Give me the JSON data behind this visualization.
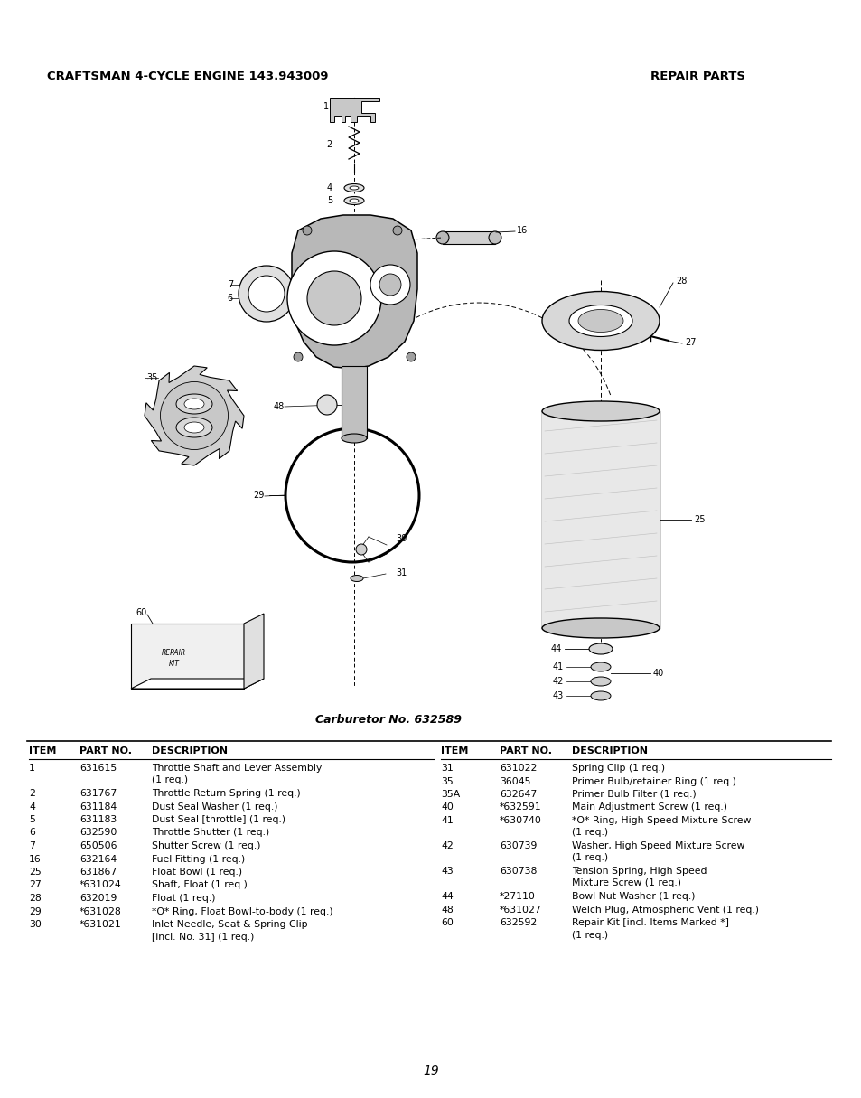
{
  "title_left": "CRAFTSMAN 4-CYCLE ENGINE 143.943009",
  "title_right": "REPAIR PARTS",
  "carburetor_label": "Carburetor No. 632589",
  "page_number": "19",
  "background_color": "#ffffff",
  "table_rows_left": [
    [
      "1",
      "631615",
      "Throttle Shaft and Lever Assembly",
      "(1 req.)"
    ],
    [
      "2",
      "631767",
      "Throttle Return Spring (1 req.)",
      ""
    ],
    [
      "4",
      "631184",
      "Dust Seal Washer (1 req.)",
      ""
    ],
    [
      "5",
      "631183",
      "Dust Seal [throttle] (1 req.)",
      ""
    ],
    [
      "6",
      "632590",
      "Throttle Shutter (1 req.)",
      ""
    ],
    [
      "7",
      "650506",
      "Shutter Screw (1 req.)",
      ""
    ],
    [
      "16",
      "632164",
      "Fuel Fitting (1 req.)",
      ""
    ],
    [
      "25",
      "631867",
      "Float Bowl (1 req.)",
      ""
    ],
    [
      "27",
      "*631024",
      "Shaft, Float (1 req.)",
      ""
    ],
    [
      "28",
      "632019",
      "Float (1 req.)",
      ""
    ],
    [
      "29",
      "*631028",
      "*O* Ring, Float Bowl-to-body (1 req.)",
      ""
    ],
    [
      "30",
      "*631021",
      "Inlet Needle, Seat & Spring Clip",
      "[incl. No. 31] (1 req.)"
    ]
  ],
  "table_rows_right": [
    [
      "31",
      "631022",
      "Spring Clip (1 req.)",
      ""
    ],
    [
      "35",
      "36045",
      "Primer Bulb/retainer Ring (1 req.)",
      ""
    ],
    [
      "35A",
      "632647",
      "Primer Bulb Filter (1 req.)",
      ""
    ],
    [
      "40",
      "*632591",
      "Main Adjustment Screw (1 req.)",
      ""
    ],
    [
      "41",
      "*630740",
      "*O* Ring, High Speed Mixture Screw",
      "(1 req.)"
    ],
    [
      "42",
      "630739",
      "Washer, High Speed Mixture Screw",
      "(1 req.)"
    ],
    [
      "43",
      "630738",
      "Tension Spring, High Speed",
      "Mixture Screw (1 req.)"
    ],
    [
      "44",
      "*27110",
      "Bowl Nut Washer (1 req.)",
      ""
    ],
    [
      "48",
      "*631027",
      "Welch Plug, Atmospheric Vent (1 req.)",
      ""
    ],
    [
      "60",
      "632592",
      "Repair Kit [incl. Items Marked *]",
      "(1 req.)"
    ]
  ]
}
